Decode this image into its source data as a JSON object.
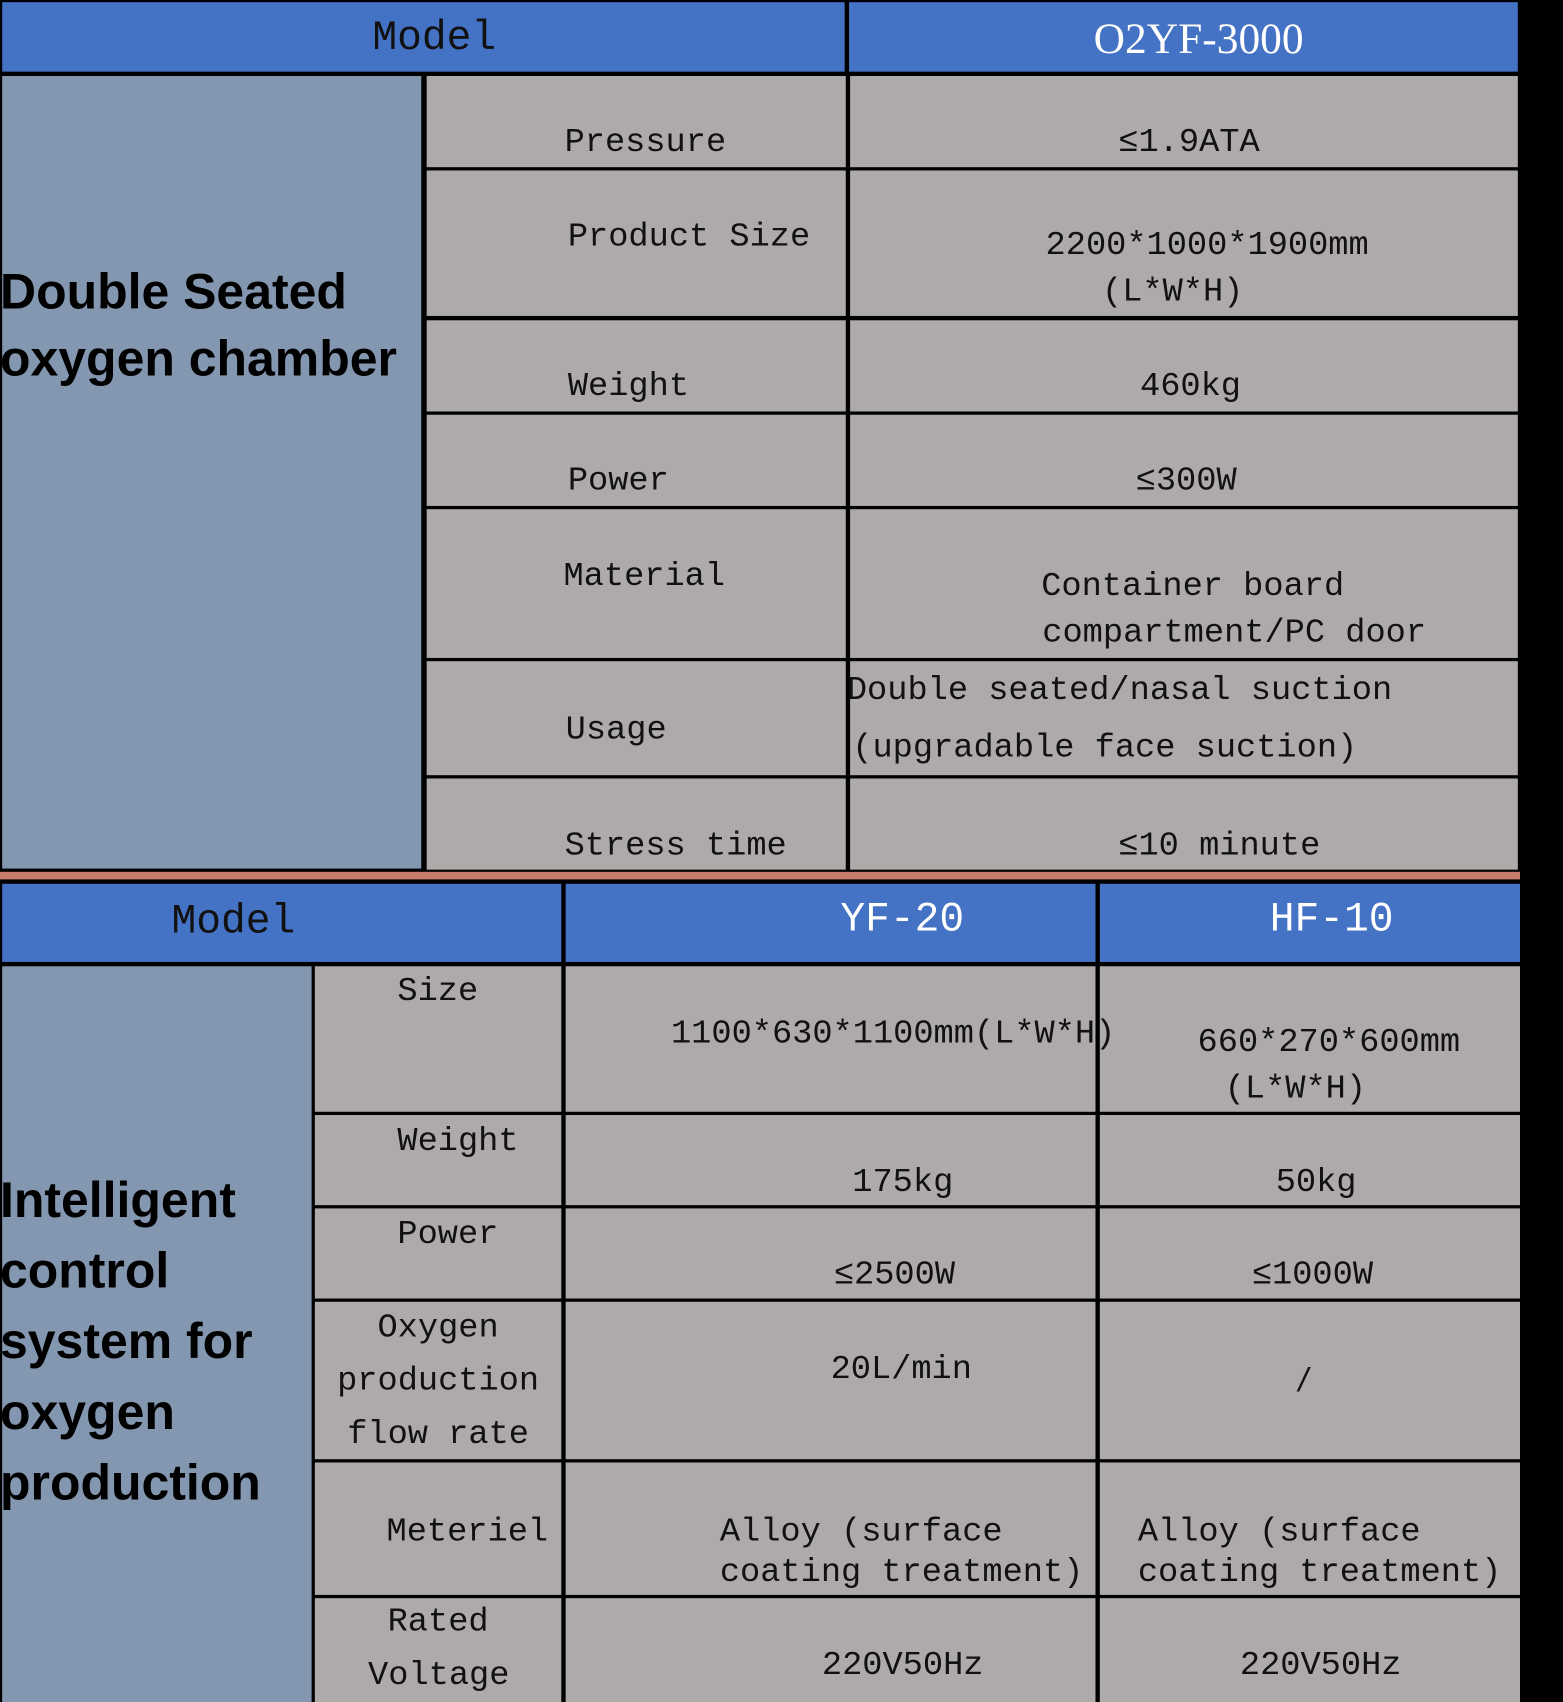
{
  "colors": {
    "header": "#4472c4",
    "category": "#8497b0",
    "cell": "#aeaaaa",
    "separator": "#c87a6c"
  },
  "table1": {
    "header": {
      "model_label": "Model",
      "model_value": "O2YF-3000"
    },
    "category": [
      "Double Seated",
      "oxygen chamber"
    ],
    "rows": [
      {
        "label": "Pressure",
        "value": [
          "≤1.9ATA"
        ]
      },
      {
        "label": "Product Size",
        "value": [
          "2200*1000*1900mm",
          "(L*W*H)"
        ]
      },
      {
        "label": "Weight",
        "value": [
          "460kg"
        ]
      },
      {
        "label": "Power",
        "value": [
          "≤300W"
        ]
      },
      {
        "label": "Material",
        "value": [
          "Container board",
          "compartment/PC door"
        ]
      },
      {
        "label": "Usage",
        "value": [
          "Double seated/nasal suction",
          "(upgradable face suction)"
        ]
      },
      {
        "label": "Stress time",
        "value": [
          "≤10 minute"
        ]
      }
    ]
  },
  "table2": {
    "header": {
      "model_label": "Model",
      "models": [
        "YF-20",
        "HF-10"
      ]
    },
    "category": [
      "Intelligent",
      "control",
      "system for",
      "oxygen",
      "production"
    ],
    "rows": [
      {
        "label": [
          "Size"
        ],
        "yf20": [
          "1100*630*1100mm(L*W*H)"
        ],
        "hf10": [
          "660*270*600mm",
          "(L*W*H)"
        ]
      },
      {
        "label": [
          "Weight"
        ],
        "yf20": [
          "175kg"
        ],
        "hf10": [
          "50kg"
        ]
      },
      {
        "label": [
          "Power"
        ],
        "yf20": [
          "≤2500W"
        ],
        "hf10": [
          "≤1000W"
        ]
      },
      {
        "label": [
          "Oxygen",
          "production",
          "flow rate"
        ],
        "yf20": [
          "20L/min"
        ],
        "hf10": [
          "/"
        ]
      },
      {
        "label": [
          "Meteriel"
        ],
        "yf20": [
          "Alloy (surface",
          "coating treatment)"
        ],
        "hf10": [
          "Alloy (surface",
          "coating treatment)"
        ]
      },
      {
        "label": [
          "Rated",
          "Voltage"
        ],
        "yf20": [
          "220V50Hz"
        ],
        "hf10": [
          "220V50Hz"
        ]
      }
    ]
  }
}
